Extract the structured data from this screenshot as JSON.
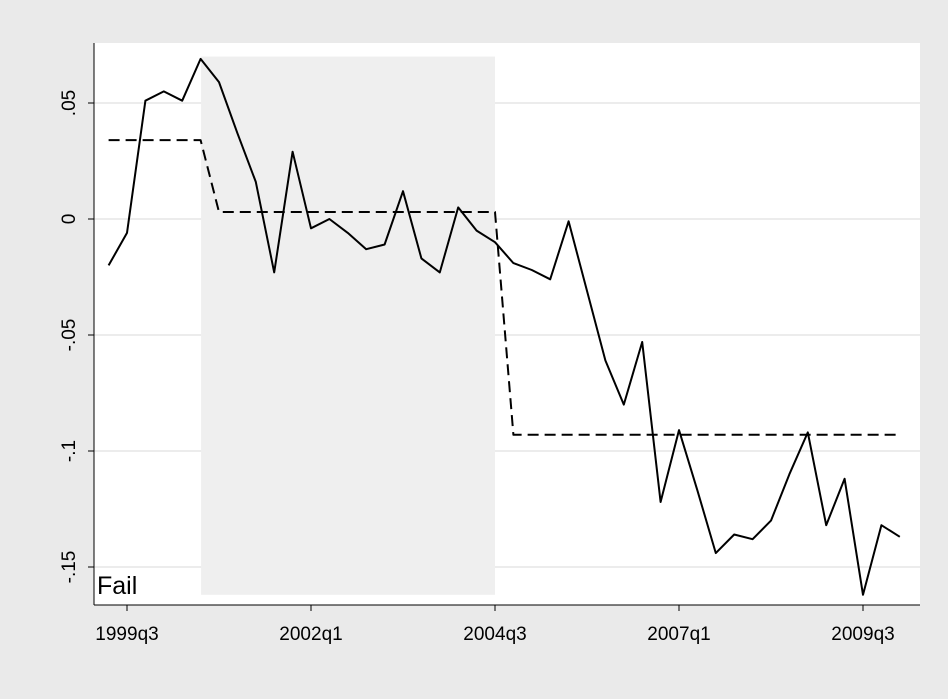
{
  "chart_data": {
    "type": "line",
    "title": "",
    "xlabel": "",
    "ylabel": "",
    "xlim": [
      "1999q2",
      "2010q1"
    ],
    "ylim": [
      -0.16,
      0.075
    ],
    "x_ticks": [
      "1999q3",
      "2002q1",
      "2004q3",
      "2007q1",
      "2009q3"
    ],
    "y_ticks": [
      {
        "value": 0.05,
        "label": ".05"
      },
      {
        "value": 0,
        "label": "0"
      },
      {
        "value": -0.05,
        "label": "-.05"
      },
      {
        "value": -0.1,
        "label": "-.1"
      },
      {
        "value": -0.15,
        "label": "-.15"
      }
    ],
    "grid": true,
    "shaded_region": {
      "x_start": "2000q3",
      "x_end": "2004q3",
      "y_top": 0.07,
      "y_bottom": -0.162,
      "color": "#efefef"
    },
    "annotation": "Fail",
    "series": [
      {
        "style": "solid",
        "color": "#000000",
        "x": [
          "1999q2",
          "1999q3",
          "1999q4",
          "2000q1",
          "2000q2",
          "2000q3",
          "2000q4",
          "2001q1",
          "2001q2",
          "2001q3",
          "2001q4",
          "2002q1",
          "2002q2",
          "2002q3",
          "2002q4",
          "2003q1",
          "2003q2",
          "2003q3",
          "2003q4",
          "2004q1",
          "2004q2",
          "2004q3",
          "2004q4",
          "2005q1",
          "2005q2",
          "2005q3",
          "2005q4",
          "2006q1",
          "2006q2",
          "2006q3",
          "2006q4",
          "2007q1",
          "2007q2",
          "2007q3",
          "2007q4",
          "2008q1",
          "2008q2",
          "2008q3",
          "2008q4",
          "2009q1",
          "2009q2",
          "2009q3",
          "2009q4",
          "2010q1"
        ],
        "values": [
          -0.02,
          -0.006,
          0.051,
          0.055,
          0.051,
          0.069,
          0.059,
          0.037,
          0.016,
          -0.023,
          0.029,
          -0.004,
          0.0,
          -0.006,
          -0.013,
          -0.011,
          0.012,
          -0.017,
          -0.023,
          0.005,
          -0.005,
          -0.01,
          -0.019,
          -0.022,
          -0.026,
          -0.001,
          -0.031,
          -0.061,
          -0.08,
          -0.053,
          -0.122,
          -0.091,
          -0.117,
          -0.144,
          -0.136,
          -0.138,
          -0.13,
          -0.11,
          -0.092,
          -0.132,
          -0.112,
          -0.162,
          -0.132,
          -0.137
        ]
      },
      {
        "style": "dashed",
        "color": "#000000",
        "x": [
          "1999q2",
          "2000q3",
          "2000q4",
          "2004q3",
          "2004q4",
          "2010q1"
        ],
        "values": [
          0.034,
          0.034,
          0.003,
          0.003,
          -0.093,
          -0.093
        ]
      }
    ]
  }
}
